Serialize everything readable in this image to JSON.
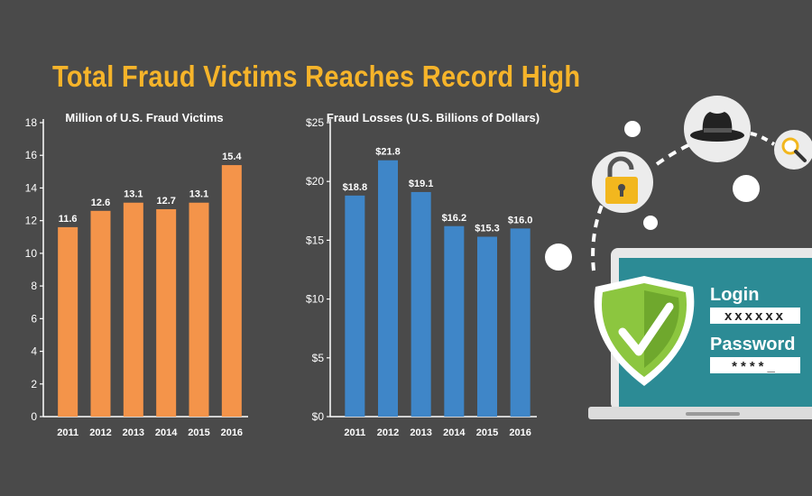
{
  "title": "Total Fraud Victims Reaches Record High",
  "colors": {
    "background": "#4a4a4a",
    "title": "#f6b42a",
    "victims_bars": "#f4944a",
    "losses_bars": "#3f86c8",
    "text": "#ffffff",
    "screen": "#2c8b95",
    "shield": "#8cc63f",
    "lock": "#f2b71e"
  },
  "chart_data": [
    {
      "type": "bar",
      "title": "Million of U.S. Fraud Victims",
      "categories": [
        "2011",
        "2012",
        "2013",
        "2014",
        "2015",
        "2016"
      ],
      "values": [
        11.6,
        12.6,
        13.1,
        12.7,
        13.1,
        15.4
      ],
      "data_labels": [
        "11.6",
        "12.6",
        "13.1",
        "12.7",
        "13.1",
        "15.4"
      ],
      "ylim": [
        0,
        18
      ],
      "yticks": [
        0,
        2,
        4,
        6,
        8,
        10,
        12,
        14,
        16,
        18
      ],
      "ytick_labels": [
        "0",
        "2",
        "4",
        "6",
        "8",
        "10",
        "12",
        "14",
        "16",
        "18"
      ],
      "color": "#f4944a"
    },
    {
      "type": "bar",
      "title": "Fraud Losses (U.S. Billions of Dollars)",
      "categories": [
        "2011",
        "2012",
        "2013",
        "2014",
        "2015",
        "2016"
      ],
      "values": [
        18.8,
        21.8,
        19.1,
        16.2,
        15.3,
        16.0
      ],
      "data_labels": [
        "$18.8",
        "$21.8",
        "$19.1",
        "$16.2",
        "$15.3",
        "$16.0"
      ],
      "ylim": [
        0,
        25
      ],
      "yticks": [
        0,
        5,
        10,
        15,
        20,
        25
      ],
      "ytick_labels": [
        "$0",
        "$5",
        "$10",
        "$15",
        "$20",
        "$25"
      ],
      "color": "#3f86c8"
    }
  ],
  "illustration": {
    "login_label": "Login",
    "login_value": "xxxxxx",
    "password_label": "Password",
    "password_value": "****_",
    "icons": [
      "padlock-icon",
      "fedora-hat-icon",
      "magnifier-icon",
      "shield-check-icon",
      "laptop-icon"
    ]
  }
}
